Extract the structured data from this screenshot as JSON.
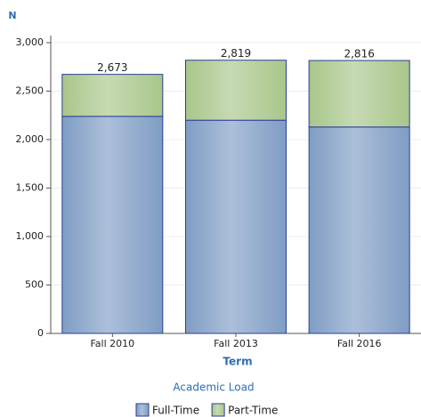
{
  "chart_data": {
    "type": "stacked-bar",
    "y_label": "N",
    "x_label": "Term",
    "legend_title": "Academic Load",
    "categories": [
      "Fall 2010",
      "Fall 2013",
      "Fall 2016"
    ],
    "series": [
      {
        "name": "Full-Time",
        "color": "#7f9dc4",
        "values": [
          2240,
          2200,
          2130
        ]
      },
      {
        "name": "Part-Time",
        "color": "#a9c68a",
        "values": [
          433,
          619,
          686
        ]
      }
    ],
    "totals": [
      2673,
      2819,
      2816
    ],
    "total_labels": [
      "2,673",
      "2,819",
      "2,816"
    ],
    "ylim": [
      0,
      3000
    ],
    "yticks": [
      0,
      500,
      {
        "value": 1000,
        "label": "1,000"
      },
      {
        "value": 1500,
        "label": "1,500"
      },
      {
        "value": 2000,
        "label": "2,000"
      },
      {
        "value": 2500,
        "label": "2,500"
      },
      {
        "value": 3000,
        "label": "3,000"
      }
    ],
    "grid": true
  }
}
